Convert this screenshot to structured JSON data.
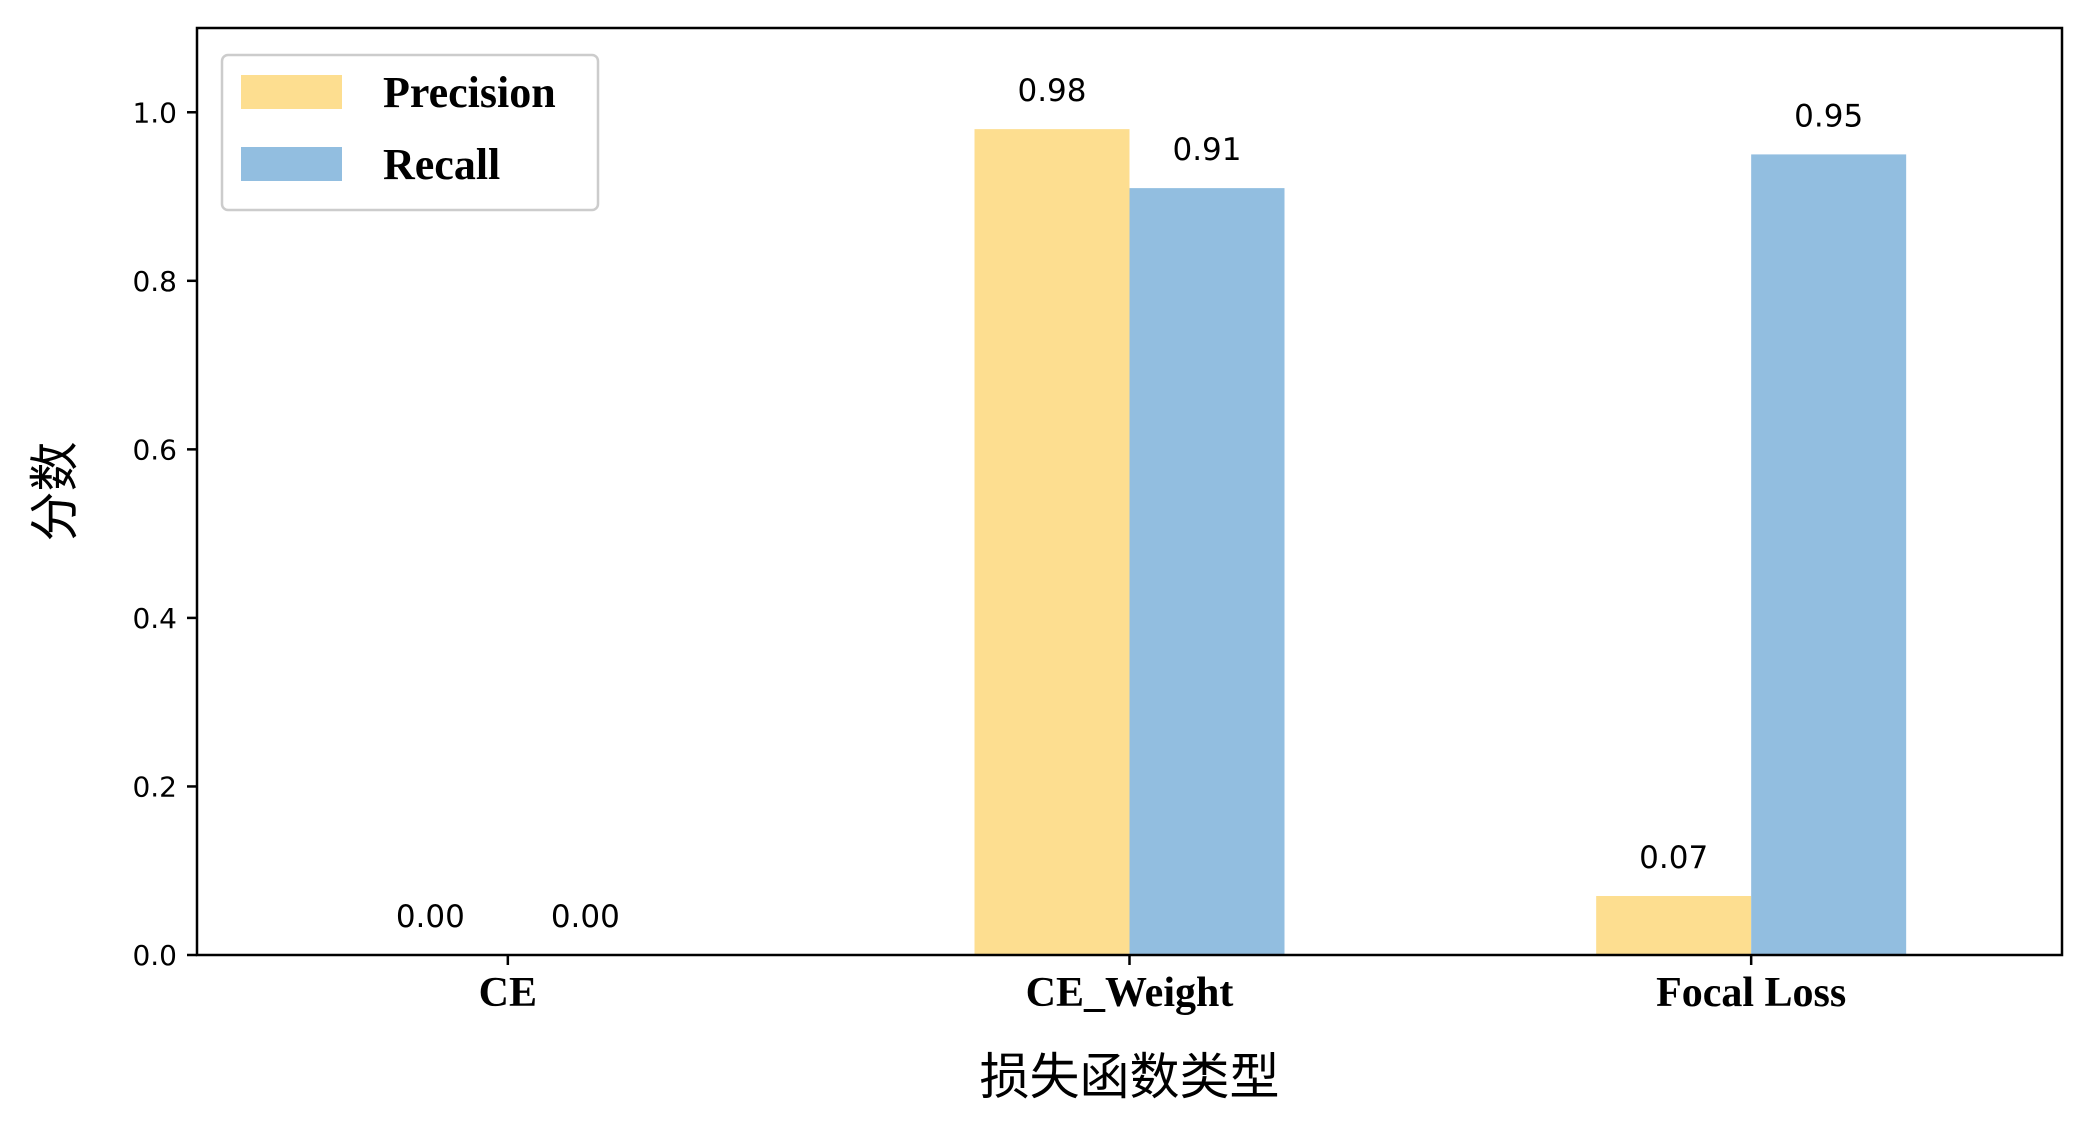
{
  "chart_data": {
    "type": "bar",
    "categories": [
      "CE",
      "CE_Weight",
      "Focal Loss"
    ],
    "series": [
      {
        "name": "Precision",
        "values": [
          0.0,
          0.98,
          0.07
        ],
        "labels": [
          "0.00",
          "0.98",
          "0.07"
        ],
        "color": "#FDDE90"
      },
      {
        "name": "Recall",
        "values": [
          0.0,
          0.91,
          0.95
        ],
        "labels": [
          "0.00",
          "0.91",
          "0.95"
        ],
        "color": "#92BEE0"
      }
    ],
    "title": "",
    "xlabel": "损失函数类型",
    "ylabel": "分数",
    "ylim": [
      0,
      1.1
    ],
    "yticks": [
      0.0,
      0.2,
      0.4,
      0.6,
      0.8,
      1.0
    ],
    "ytick_labels": [
      "0.0",
      "0.2",
      "0.4",
      "0.6",
      "0.8",
      "1.0"
    ],
    "grid": false,
    "legend_position": "top-left"
  }
}
